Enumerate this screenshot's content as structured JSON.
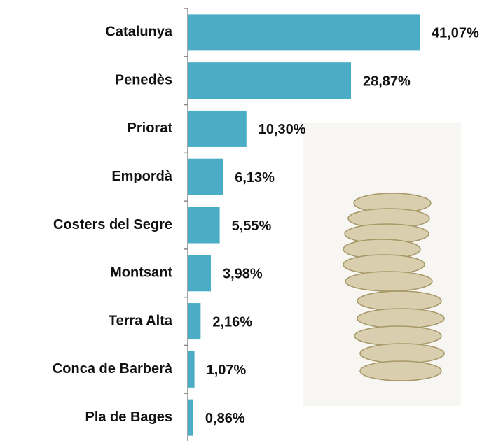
{
  "chart_data": {
    "type": "hbar",
    "color": "#4aacc5",
    "categories": [
      "Catalunya",
      "Penedès",
      "Priorat",
      "Empordà",
      "Costers del Segre",
      "Montsant",
      "Terra Alta",
      "Conca de Barberà",
      "Pla de Bages"
    ],
    "values": [
      41.07,
      28.87,
      10.3,
      6.13,
      5.55,
      3.98,
      2.16,
      1.07,
      0.86
    ],
    "value_labels": [
      "41,07%",
      "28,87%",
      "10,30%",
      "6,13%",
      "5,55%",
      "3,98%",
      "2,16%",
      "1,07%",
      "0,86%"
    ]
  }
}
